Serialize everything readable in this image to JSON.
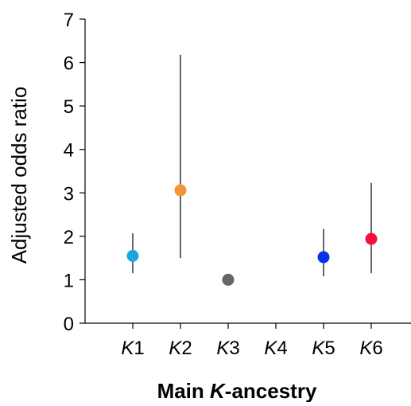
{
  "chart_data": {
    "type": "scatter",
    "title": "",
    "xlabel": "Main K-ancestry",
    "xlabel_parts": {
      "italic": "K",
      "rest": "-ancestry",
      "prefix": "Main "
    },
    "ylabel": "Adjusted odds ratio",
    "ylim": [
      0,
      7
    ],
    "yticks": [
      "0",
      "1",
      "2",
      "3",
      "4",
      "5",
      "6",
      "7"
    ],
    "categories": [
      "K1",
      "K2",
      "K3",
      "K4",
      "K5",
      "K6"
    ],
    "category_parts": [
      {
        "italic": "K",
        "num": "1"
      },
      {
        "italic": "K",
        "num": "2"
      },
      {
        "italic": "K",
        "num": "3"
      },
      {
        "italic": "K",
        "num": "4"
      },
      {
        "italic": "K",
        "num": "5"
      },
      {
        "italic": "K",
        "num": "6"
      }
    ],
    "points": [
      {
        "category": "K1",
        "value": 1.55,
        "ci_low": 1.15,
        "ci_high": 2.07,
        "color": "#1aa7e0"
      },
      {
        "category": "K2",
        "value": 3.06,
        "ci_low": 1.5,
        "ci_high": 6.18,
        "color": "#f5953a"
      },
      {
        "category": "K3",
        "value": 1.0,
        "ci_low": null,
        "ci_high": null,
        "color": "#666666"
      },
      {
        "category": "K4",
        "value": null,
        "ci_low": null,
        "ci_high": null,
        "color": null
      },
      {
        "category": "K5",
        "value": 1.52,
        "ci_low": 1.08,
        "ci_high": 2.17,
        "color": "#0a32e6"
      },
      {
        "category": "K6",
        "value": 1.94,
        "ci_low": 1.15,
        "ci_high": 3.23,
        "color": "#f50f3c"
      }
    ],
    "grid": false,
    "legend": "none"
  }
}
